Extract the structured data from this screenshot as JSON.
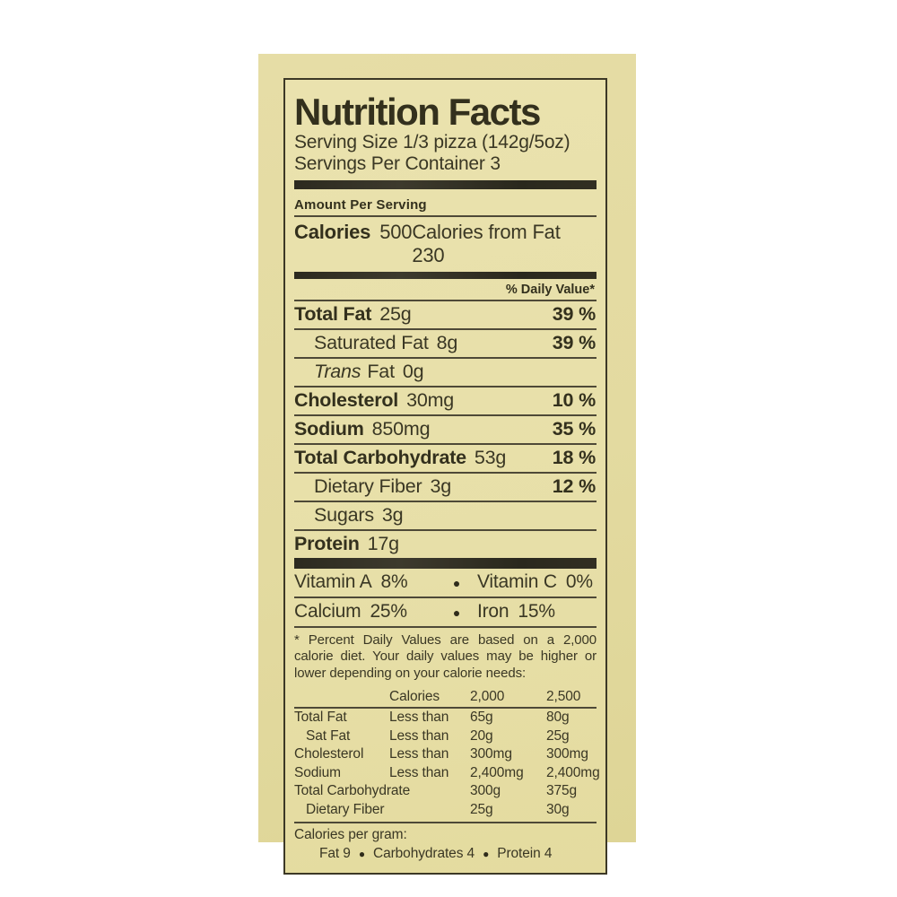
{
  "colors": {
    "page_background": "#ffffff",
    "label_background": "#e3daa0",
    "box_background": "#e8e0aa",
    "text": "#3a3724",
    "rule": "#4e4937",
    "thick_bar": "#2c2a1f"
  },
  "icons": {
    "bullet": "●"
  },
  "label": {
    "title": "Nutrition Facts",
    "serving_size": "Serving Size 1/3 pizza (142g/5oz)",
    "servings_per_container": "Servings Per Container 3",
    "amount_per_serving": "Amount Per Serving",
    "calories": {
      "label": "Calories",
      "value": "500",
      "from_fat": "Calories from Fat 230"
    },
    "daily_value_header": "% Daily Value*",
    "nutrients": [
      {
        "name": "Total Fat",
        "amount": "25g",
        "dv": "39 %"
      },
      {
        "name": "Saturated Fat",
        "amount": "8g",
        "dv": "39 %"
      },
      {
        "name_italic": "Trans",
        "name": "Fat",
        "amount": "0g",
        "dv": ""
      },
      {
        "name": "Cholesterol",
        "amount": "30mg",
        "dv": "10 %"
      },
      {
        "name": "Sodium",
        "amount": "850mg",
        "dv": "35 %"
      },
      {
        "name": "Total Carbohydrate",
        "amount": "53g",
        "dv": "18 %"
      },
      {
        "name": "Dietary Fiber",
        "amount": "3g",
        "dv": "12 %"
      },
      {
        "name": "Sugars",
        "amount": "3g",
        "dv": ""
      },
      {
        "name": "Protein",
        "amount": "17g",
        "dv": ""
      }
    ],
    "vitamin_rows": [
      {
        "left": {
          "name": "Vitamin A",
          "value": "8%"
        },
        "right": {
          "name": "Vitamin C",
          "value": "0%"
        }
      },
      {
        "left": {
          "name": "Calcium",
          "value": "25%"
        },
        "right": {
          "name": "Iron",
          "value": "15%"
        }
      }
    ],
    "footnote": "* Percent Daily Values are based on a 2,000 calorie diet.  Your daily values may be higher or lower depending on your calorie needs:",
    "dv_table": {
      "header": {
        "calories_label": "Calories",
        "col_2000": "2,000",
        "col_2500": "2,500"
      },
      "rows": [
        {
          "name": "Total Fat",
          "qualifier": "Less than",
          "v2000": "65g",
          "v2500": "80g"
        },
        {
          "name": "Sat Fat",
          "qualifier": "Less than",
          "v2000": "20g",
          "v2500": "25g"
        },
        {
          "name": "Cholesterol",
          "qualifier": "Less than",
          "v2000": "300mg",
          "v2500": "300mg"
        },
        {
          "name": "Sodium",
          "qualifier": "Less than",
          "v2000": "2,400mg",
          "v2500": "2,400mg"
        },
        {
          "name": "Total Carbohydrate",
          "qualifier": "",
          "v2000": "300g",
          "v2500": "375g"
        },
        {
          "name": "Dietary Fiber",
          "qualifier": "",
          "v2000": "25g",
          "v2500": "30g"
        }
      ]
    },
    "calories_per_gram": {
      "heading": "Calories per gram:",
      "items": [
        "Fat 9",
        "Carbohydrates 4",
        "Protein 4"
      ]
    }
  }
}
